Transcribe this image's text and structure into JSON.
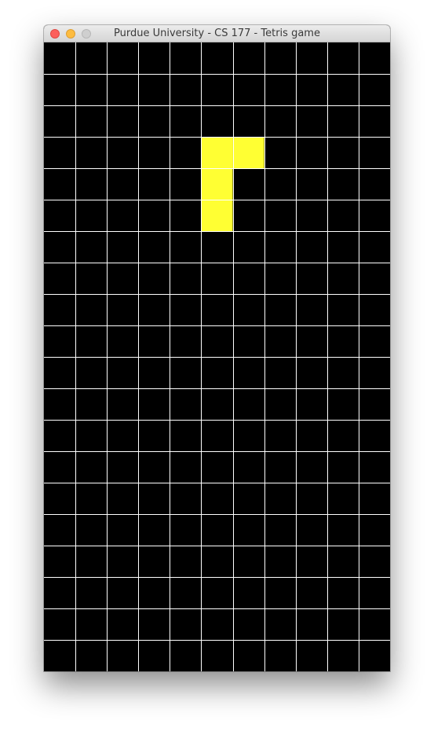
{
  "window": {
    "title": "Purdue University - CS 177 - Tetris game"
  },
  "board": {
    "columns": 11,
    "rows": 20,
    "background_color": "#000000",
    "grid_line_color": "#ffffff",
    "filled_cells": [
      {
        "row": 3,
        "col": 5,
        "color": "#ffff33"
      },
      {
        "row": 3,
        "col": 6,
        "color": "#ffff33"
      },
      {
        "row": 4,
        "col": 5,
        "color": "#ffff33"
      },
      {
        "row": 5,
        "col": 5,
        "color": "#ffff33"
      }
    ]
  },
  "icons": {
    "close": "close-icon",
    "minimize": "minimize-icon",
    "zoom": "zoom-icon"
  }
}
